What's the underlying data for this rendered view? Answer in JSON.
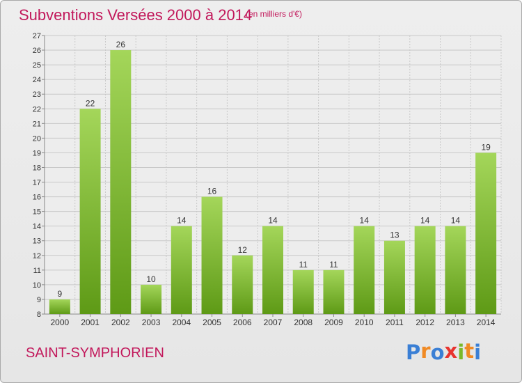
{
  "title": "Subventions Versées 2000 à 2014",
  "subtitle": "(en milliers d'€)",
  "commune": "SAINT-SYMPHORIEN",
  "logo": {
    "letters": [
      "P",
      "r",
      "o",
      "x",
      "i",
      "t",
      "i"
    ],
    "colors": [
      "#3a7fd5",
      "#f08a24",
      "#3a7fd5",
      "#e8342f",
      "#7ab829",
      "#f08a24",
      "#3a7fd5"
    ]
  },
  "colors": {
    "text": "#c2185b",
    "bar_light": "#a4d65a",
    "bar_dark": "#5e9a16",
    "grid": "#c8c8c8"
  },
  "chart_data": {
    "type": "bar",
    "categories": [
      "2000",
      "2001",
      "2002",
      "2003",
      "2004",
      "2005",
      "2006",
      "2007",
      "2008",
      "2009",
      "2010",
      "2011",
      "2012",
      "2013",
      "2014"
    ],
    "values": [
      9,
      22,
      26,
      10,
      14,
      16,
      12,
      14,
      11,
      11,
      14,
      13,
      14,
      14,
      19
    ],
    "ylim": [
      8,
      27
    ],
    "yticks": [
      "8",
      "9",
      "10",
      "11",
      "12",
      "13",
      "14",
      "15",
      "16",
      "17",
      "18",
      "19",
      "20",
      "21",
      "22",
      "23",
      "24",
      "25",
      "26",
      "27"
    ],
    "grid": true,
    "data_labels": true
  }
}
